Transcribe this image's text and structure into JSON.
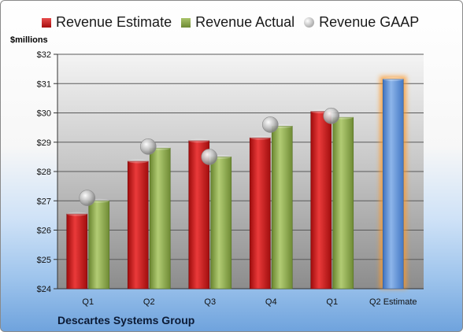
{
  "chart_data": {
    "type": "bar",
    "ylabel": "$millions",
    "footer": "Descartes Systems Group",
    "categories": [
      "Q1",
      "Q2",
      "Q3",
      "Q4",
      "Q1",
      "Q2 Estimate"
    ],
    "ylim": [
      24,
      32
    ],
    "yticks": [
      "$24",
      "$25",
      "$26",
      "$27",
      "$28",
      "$29",
      "$30",
      "$31",
      "$32"
    ],
    "grid": true,
    "legend_position": "top",
    "series": [
      {
        "name": "Revenue Estimate",
        "type": "bar",
        "color": "#cc1a1a",
        "values": [
          26.55,
          28.35,
          29.05,
          29.15,
          30.05,
          null
        ]
      },
      {
        "name": "Revenue Actual",
        "type": "bar",
        "color": "#8aa84a",
        "values": [
          27.0,
          28.8,
          28.5,
          29.55,
          29.85,
          null
        ]
      },
      {
        "name": "Revenue GAAP",
        "type": "marker",
        "color": "#c0c0c0",
        "values": [
          27.1,
          28.85,
          28.5,
          29.6,
          29.9,
          null
        ]
      },
      {
        "name": "",
        "type": "bar",
        "color": "#5b8fd6",
        "values": [
          null,
          null,
          null,
          null,
          null,
          31.15
        ]
      }
    ]
  }
}
